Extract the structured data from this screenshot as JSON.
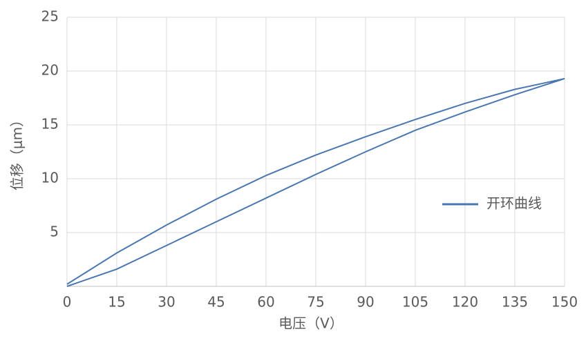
{
  "chart_data": {
    "type": "line",
    "x_label": "电压（V）",
    "y_label": "位移（μm）",
    "x": [
      0,
      15,
      30,
      45,
      60,
      75,
      90,
      105,
      120,
      135,
      150,
      135,
      120,
      105,
      90,
      75,
      60,
      45,
      30,
      15,
      0
    ],
    "series": [
      {
        "name": "开环曲线",
        "color": "#4a76b0",
        "values": [
          0,
          1.6,
          3.8,
          6.0,
          8.2,
          10.4,
          12.5,
          14.5,
          16.2,
          17.8,
          19.3,
          18.3,
          17.0,
          15.5,
          13.9,
          12.2,
          10.3,
          8.1,
          5.7,
          3.1,
          0.2
        ]
      }
    ],
    "xlim": [
      0,
      150
    ],
    "xticks": [
      0,
      15,
      30,
      45,
      60,
      75,
      90,
      105,
      120,
      135,
      150
    ],
    "ylim": [
      0,
      25
    ],
    "yticks": [
      5,
      10,
      15,
      20,
      25
    ],
    "grid": true,
    "legend": "right"
  }
}
